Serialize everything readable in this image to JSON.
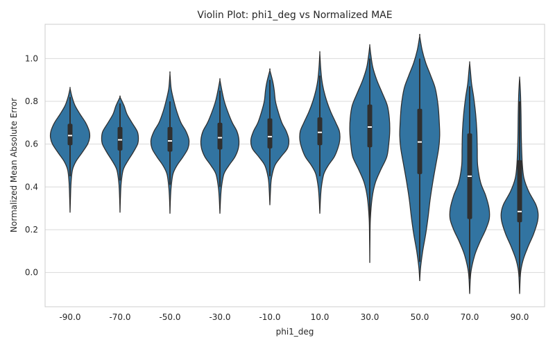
{
  "chart_data": {
    "type": "violin",
    "title": "Violin Plot: phi1_deg vs Normalized MAE",
    "xlabel": "phi1_deg",
    "ylabel": "Normalized Mean Absolute Error",
    "ylim": [
      -0.16,
      1.16
    ],
    "yticks": [
      0.0,
      0.2,
      0.4,
      0.6,
      0.8,
      1.0
    ],
    "ytick_labels": [
      "0.0",
      "0.2",
      "0.4",
      "0.6",
      "0.8",
      "1.0"
    ],
    "grid": true,
    "colors": {
      "fill": "#3274a1",
      "edge": "#2f2f2f",
      "box": "#2f2f2f",
      "median": "#ffffff",
      "grid": "#d9d9d9"
    },
    "categories": [
      "-90.0",
      "-70.0",
      "-50.0",
      "-30.0",
      "-10.0",
      "10.0",
      "30.0",
      "50.0",
      "70.0",
      "90.0"
    ],
    "violins": [
      {
        "min": 0.28,
        "max": 0.86,
        "q1": 0.595,
        "median": 0.64,
        "q3": 0.695,
        "whisker_low": 0.45,
        "whisker_high": 0.82,
        "profile": [
          [
            0.28,
            0.0
          ],
          [
            0.35,
            0.02
          ],
          [
            0.42,
            0.05
          ],
          [
            0.48,
            0.12
          ],
          [
            0.52,
            0.3
          ],
          [
            0.56,
            0.6
          ],
          [
            0.6,
            0.88
          ],
          [
            0.63,
            0.98
          ],
          [
            0.66,
            0.96
          ],
          [
            0.7,
            0.78
          ],
          [
            0.74,
            0.5
          ],
          [
            0.78,
            0.25
          ],
          [
            0.82,
            0.1
          ],
          [
            0.86,
            0.0
          ]
        ]
      },
      {
        "min": 0.28,
        "max": 0.82,
        "q1": 0.57,
        "median": 0.62,
        "q3": 0.68,
        "whisker_low": 0.43,
        "whisker_high": 0.79,
        "profile": [
          [
            0.28,
            0.0
          ],
          [
            0.35,
            0.02
          ],
          [
            0.42,
            0.06
          ],
          [
            0.48,
            0.16
          ],
          [
            0.52,
            0.38
          ],
          [
            0.56,
            0.65
          ],
          [
            0.6,
            0.88
          ],
          [
            0.63,
            0.92
          ],
          [
            0.66,
            0.86
          ],
          [
            0.7,
            0.6
          ],
          [
            0.74,
            0.35
          ],
          [
            0.78,
            0.2
          ],
          [
            0.82,
            0.0
          ]
        ]
      },
      {
        "min": 0.275,
        "max": 0.93,
        "q1": 0.565,
        "median": 0.615,
        "q3": 0.68,
        "whisker_low": 0.41,
        "whisker_high": 0.8,
        "profile": [
          [
            0.275,
            0.0
          ],
          [
            0.34,
            0.02
          ],
          [
            0.4,
            0.06
          ],
          [
            0.46,
            0.15
          ],
          [
            0.5,
            0.35
          ],
          [
            0.54,
            0.65
          ],
          [
            0.58,
            0.9
          ],
          [
            0.62,
            0.95
          ],
          [
            0.66,
            0.8
          ],
          [
            0.7,
            0.55
          ],
          [
            0.75,
            0.35
          ],
          [
            0.8,
            0.2
          ],
          [
            0.86,
            0.06
          ],
          [
            0.93,
            0.0
          ]
        ]
      },
      {
        "min": 0.275,
        "max": 0.9,
        "q1": 0.575,
        "median": 0.63,
        "q3": 0.7,
        "whisker_low": 0.4,
        "whisker_high": 0.85,
        "profile": [
          [
            0.275,
            0.0
          ],
          [
            0.34,
            0.03
          ],
          [
            0.4,
            0.08
          ],
          [
            0.46,
            0.2
          ],
          [
            0.5,
            0.45
          ],
          [
            0.54,
            0.75
          ],
          [
            0.58,
            0.92
          ],
          [
            0.62,
            0.95
          ],
          [
            0.66,
            0.85
          ],
          [
            0.7,
            0.62
          ],
          [
            0.75,
            0.4
          ],
          [
            0.8,
            0.22
          ],
          [
            0.85,
            0.1
          ],
          [
            0.9,
            0.0
          ]
        ]
      },
      {
        "min": 0.315,
        "max": 0.945,
        "q1": 0.58,
        "median": 0.635,
        "q3": 0.72,
        "whisker_low": 0.45,
        "whisker_high": 0.9,
        "profile": [
          [
            0.315,
            0.0
          ],
          [
            0.38,
            0.03
          ],
          [
            0.44,
            0.08
          ],
          [
            0.5,
            0.25
          ],
          [
            0.54,
            0.55
          ],
          [
            0.58,
            0.88
          ],
          [
            0.62,
            0.95
          ],
          [
            0.66,
            0.82
          ],
          [
            0.7,
            0.6
          ],
          [
            0.75,
            0.42
          ],
          [
            0.8,
            0.28
          ],
          [
            0.85,
            0.22
          ],
          [
            0.89,
            0.15
          ],
          [
            0.945,
            0.0
          ]
        ]
      },
      {
        "min": 0.275,
        "max": 1.025,
        "q1": 0.595,
        "median": 0.655,
        "q3": 0.725,
        "whisker_low": 0.45,
        "whisker_high": 0.92,
        "profile": [
          [
            0.275,
            0.0
          ],
          [
            0.34,
            0.03
          ],
          [
            0.4,
            0.08
          ],
          [
            0.46,
            0.2
          ],
          [
            0.5,
            0.42
          ],
          [
            0.54,
            0.72
          ],
          [
            0.58,
            0.9
          ],
          [
            0.62,
            1.0
          ],
          [
            0.66,
            0.98
          ],
          [
            0.7,
            0.8
          ],
          [
            0.75,
            0.55
          ],
          [
            0.8,
            0.35
          ],
          [
            0.85,
            0.2
          ],
          [
            0.9,
            0.1
          ],
          [
            0.96,
            0.04
          ],
          [
            1.025,
            0.0
          ]
        ]
      },
      {
        "min": 0.045,
        "max": 1.06,
        "q1": 0.585,
        "median": 0.68,
        "q3": 0.785,
        "whisker_low": 0.2,
        "whisker_high": 1.0,
        "profile": [
          [
            0.045,
            0.0
          ],
          [
            0.15,
            0.01
          ],
          [
            0.25,
            0.03
          ],
          [
            0.35,
            0.12
          ],
          [
            0.42,
            0.28
          ],
          [
            0.48,
            0.55
          ],
          [
            0.54,
            0.85
          ],
          [
            0.6,
            0.95
          ],
          [
            0.66,
            1.0
          ],
          [
            0.72,
            0.98
          ],
          [
            0.78,
            0.88
          ],
          [
            0.84,
            0.62
          ],
          [
            0.9,
            0.35
          ],
          [
            0.96,
            0.15
          ],
          [
            1.02,
            0.05
          ],
          [
            1.06,
            0.0
          ]
        ]
      },
      {
        "min": -0.04,
        "max": 1.105,
        "q1": 0.46,
        "median": 0.61,
        "q3": 0.765,
        "whisker_low": 0.05,
        "whisker_high": 1.0,
        "profile": [
          [
            -0.04,
            0.0
          ],
          [
            0.02,
            0.04
          ],
          [
            0.1,
            0.15
          ],
          [
            0.18,
            0.3
          ],
          [
            0.26,
            0.42
          ],
          [
            0.34,
            0.52
          ],
          [
            0.42,
            0.65
          ],
          [
            0.5,
            0.8
          ],
          [
            0.58,
            0.95
          ],
          [
            0.64,
            1.0
          ],
          [
            0.7,
            0.98
          ],
          [
            0.78,
            0.92
          ],
          [
            0.86,
            0.78
          ],
          [
            0.92,
            0.55
          ],
          [
            0.98,
            0.3
          ],
          [
            1.04,
            0.12
          ],
          [
            1.105,
            0.0
          ]
        ]
      },
      {
        "min": -0.1,
        "max": 0.98,
        "q1": 0.25,
        "median": 0.45,
        "q3": 0.65,
        "whisker_low": -0.03,
        "whisker_high": 0.87,
        "profile": [
          [
            -0.1,
            0.0
          ],
          [
            0.0,
            0.06
          ],
          [
            0.08,
            0.25
          ],
          [
            0.14,
            0.5
          ],
          [
            0.2,
            0.8
          ],
          [
            0.25,
            0.98
          ],
          [
            0.3,
            0.97
          ],
          [
            0.36,
            0.8
          ],
          [
            0.42,
            0.55
          ],
          [
            0.5,
            0.4
          ],
          [
            0.58,
            0.38
          ],
          [
            0.66,
            0.36
          ],
          [
            0.74,
            0.3
          ],
          [
            0.82,
            0.2
          ],
          [
            0.88,
            0.1
          ],
          [
            0.94,
            0.04
          ],
          [
            0.98,
            0.0
          ]
        ]
      },
      {
        "min": -0.1,
        "max": 0.91,
        "q1": 0.235,
        "median": 0.285,
        "q3": 0.525,
        "whisker_low": -0.02,
        "whisker_high": 0.8,
        "profile": [
          [
            -0.1,
            0.0
          ],
          [
            0.0,
            0.05
          ],
          [
            0.06,
            0.18
          ],
          [
            0.12,
            0.42
          ],
          [
            0.18,
            0.7
          ],
          [
            0.24,
            0.9
          ],
          [
            0.28,
            0.92
          ],
          [
            0.32,
            0.8
          ],
          [
            0.38,
            0.45
          ],
          [
            0.44,
            0.22
          ],
          [
            0.5,
            0.14
          ],
          [
            0.58,
            0.1
          ],
          [
            0.66,
            0.08
          ],
          [
            0.74,
            0.07
          ],
          [
            0.82,
            0.05
          ],
          [
            0.88,
            0.02
          ],
          [
            0.91,
            0.0
          ]
        ]
      }
    ]
  }
}
